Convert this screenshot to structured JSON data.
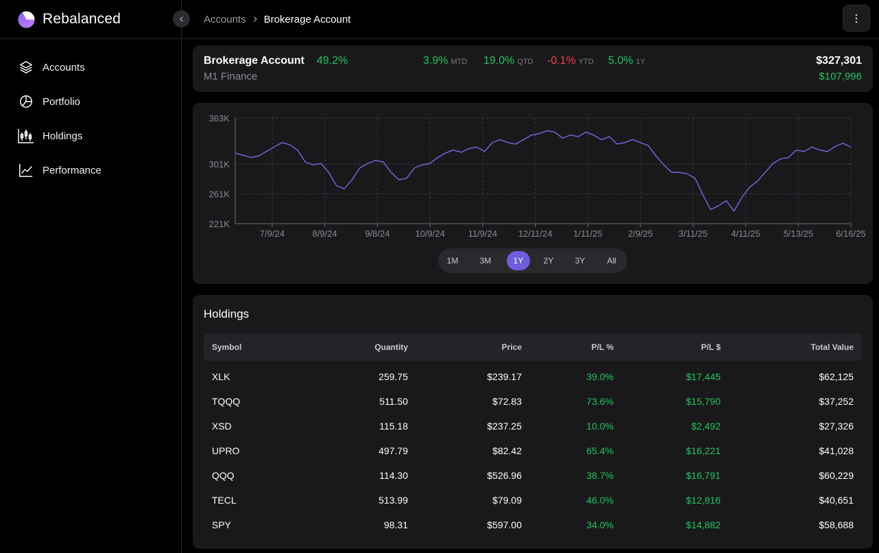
{
  "app": {
    "name": "Rebalanced"
  },
  "colors": {
    "accent": "#6d5be0",
    "positive": "#22c55e",
    "negative": "#ef4444",
    "line": "#7c6ff0"
  },
  "sidebar": {
    "items": [
      {
        "label": "Accounts",
        "icon": "layers-icon"
      },
      {
        "label": "Portfolio",
        "icon": "pie-chart-icon"
      },
      {
        "label": "Holdings",
        "icon": "candlestick-icon"
      },
      {
        "label": "Performance",
        "icon": "line-chart-icon"
      }
    ]
  },
  "header": {
    "breadcrumb": {
      "parent": "Accounts",
      "current": "Brokerage Account"
    }
  },
  "account": {
    "name": "Brokerage Account",
    "total_return": "49.2%",
    "broker": "M1 Finance",
    "mtd": {
      "value": "3.9%",
      "label": "MTD"
    },
    "qtd": {
      "value": "19.0%",
      "label": "QTD"
    },
    "ytd": {
      "value": "-0.1%",
      "label": "YTD"
    },
    "one_year": {
      "value": "5.0%",
      "label": "1Y"
    },
    "total_value": "$327,301",
    "gain": "$107,996"
  },
  "range_selector": {
    "options": [
      "1M",
      "3M",
      "1Y",
      "2Y",
      "3Y",
      "All"
    ],
    "selected": "1Y"
  },
  "chart_data": {
    "type": "line",
    "x_tick_labels": [
      "7/9/24",
      "8/9/24",
      "9/8/24",
      "10/9/24",
      "11/9/24",
      "12/11/24",
      "1/11/25",
      "2/9/25",
      "3/11/25",
      "4/11/25",
      "5/13/25",
      "6/16/25"
    ],
    "y_tick_labels": [
      "363K",
      "301K",
      "261K",
      "221K"
    ],
    "y_ticks": [
      363,
      301,
      261,
      221
    ],
    "ylim": [
      221,
      363
    ],
    "grid": true,
    "series": [
      {
        "values": [
          316,
          313,
          310,
          312,
          318,
          324,
          330,
          327,
          320,
          304,
          300,
          302,
          290,
          272,
          268,
          280,
          296,
          302,
          306,
          304,
          290,
          280,
          282,
          296,
          300,
          302,
          310,
          316,
          320,
          317,
          322,
          324,
          318,
          330,
          334,
          330,
          328,
          334,
          340,
          342,
          346,
          344,
          336,
          340,
          338,
          344,
          340,
          334,
          338,
          328,
          330,
          334,
          330,
          326,
          312,
          300,
          290,
          290,
          288,
          282,
          260,
          240,
          245,
          252,
          238,
          256,
          270,
          278,
          290,
          302,
          308,
          310,
          320,
          318,
          324,
          320,
          318,
          325,
          329,
          324
        ]
      }
    ]
  },
  "holdings": {
    "title": "Holdings",
    "columns": [
      "Symbol",
      "Quantity",
      "Price",
      "P/L %",
      "P/L $",
      "Total Value"
    ],
    "rows": [
      {
        "symbol": "XLK",
        "quantity": "259.75",
        "price": "$239.17",
        "pl_pct": "39.0%",
        "pl_usd": "$17,445",
        "total": "$62,125"
      },
      {
        "symbol": "TQQQ",
        "quantity": "511.50",
        "price": "$72.83",
        "pl_pct": "73.6%",
        "pl_usd": "$15,790",
        "total": "$37,252"
      },
      {
        "symbol": "XSD",
        "quantity": "115.18",
        "price": "$237.25",
        "pl_pct": "10.0%",
        "pl_usd": "$2,492",
        "total": "$27,326"
      },
      {
        "symbol": "UPRO",
        "quantity": "497.79",
        "price": "$82.42",
        "pl_pct": "65.4%",
        "pl_usd": "$16,221",
        "total": "$41,028"
      },
      {
        "symbol": "QQQ",
        "quantity": "114.30",
        "price": "$526.96",
        "pl_pct": "38.7%",
        "pl_usd": "$16,791",
        "total": "$60,229"
      },
      {
        "symbol": "TECL",
        "quantity": "513.99",
        "price": "$79.09",
        "pl_pct": "46.0%",
        "pl_usd": "$12,816",
        "total": "$40,651"
      },
      {
        "symbol": "SPY",
        "quantity": "98.31",
        "price": "$597.00",
        "pl_pct": "34.0%",
        "pl_usd": "$14,882",
        "total": "$58,688"
      }
    ]
  }
}
